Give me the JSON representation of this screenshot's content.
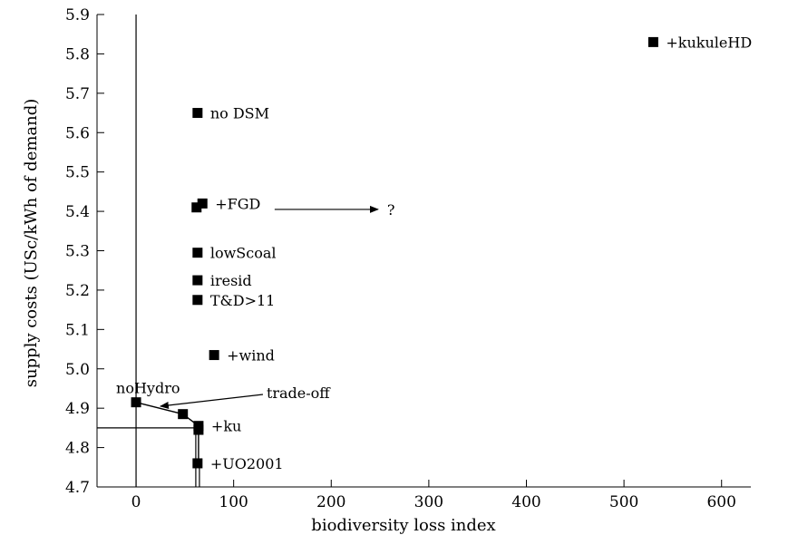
{
  "chart_data": {
    "type": "scatter",
    "title": "",
    "xlabel": "biodiversity loss index",
    "ylabel": "supply costs (USc/kWh of demand)",
    "xlim": [
      -40,
      630
    ],
    "ylim": [
      4.7,
      5.9
    ],
    "xticks": [
      0,
      100,
      200,
      300,
      400,
      500,
      600
    ],
    "yticks": [
      4.7,
      4.8,
      4.9,
      5.0,
      5.1,
      5.2,
      5.3,
      5.4,
      5.5,
      5.6,
      5.7,
      5.8,
      5.9
    ],
    "grid": false,
    "points": [
      {
        "x": 63,
        "y": 5.65,
        "label": "no DSM"
      },
      {
        "x": 68,
        "y": 5.42,
        "label": "+FGD"
      },
      {
        "x": 62,
        "y": 5.41,
        "label": ""
      },
      {
        "x": 63,
        "y": 5.295,
        "label": "lowScoal"
      },
      {
        "x": 63,
        "y": 5.225,
        "label": "iresid"
      },
      {
        "x": 63,
        "y": 5.175,
        "label": "T&D>11"
      },
      {
        "x": 80,
        "y": 5.035,
        "label": "+wind"
      },
      {
        "x": 0,
        "y": 4.915,
        "label": "noHydro"
      },
      {
        "x": 48,
        "y": 4.885,
        "label": ""
      },
      {
        "x": 64,
        "y": 4.855,
        "label": "+ku"
      },
      {
        "x": 64,
        "y": 4.845,
        "label": ""
      },
      {
        "x": 63,
        "y": 4.76,
        "label": "+UO2001"
      },
      {
        "x": 530,
        "y": 5.83,
        "label": "+kukuleHD"
      }
    ],
    "reference_lines": {
      "vertical_x": 0,
      "horizontal_y": 4.85
    },
    "frontier": [
      [
        0,
        4.915
      ],
      [
        48,
        4.885
      ],
      [
        64,
        4.855
      ],
      [
        64,
        4.76
      ]
    ],
    "annotations": [
      {
        "text": "trade-off",
        "from": [
          130,
          4.935
        ],
        "to": [
          25,
          4.905
        ]
      },
      {
        "text": "?",
        "from": [
          142,
          5.405
        ],
        "to": [
          248,
          5.405
        ]
      }
    ]
  }
}
